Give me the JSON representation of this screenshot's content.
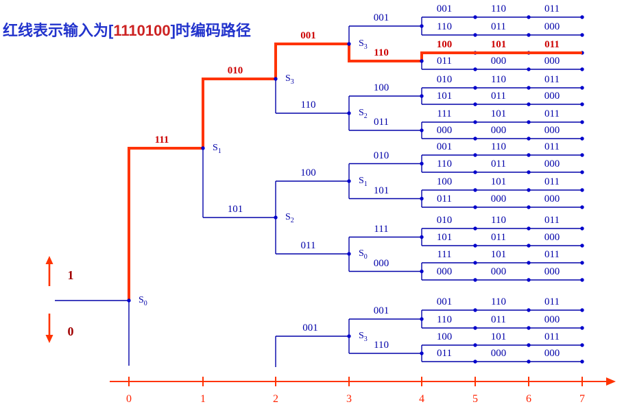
{
  "title": {
    "text_before": "红线表示输入为",
    "bracket_left": "[",
    "input_bits": "1110100",
    "bracket_right": "]",
    "text_after": "时编码路径"
  },
  "legend": {
    "one": "1",
    "zero": "0"
  },
  "axis": {
    "ticks": [
      "0",
      "1",
      "2",
      "3",
      "4",
      "5",
      "6",
      "7"
    ]
  },
  "states": [
    {
      "base": "S",
      "sub": "0"
    },
    {
      "base": "S",
      "sub": "1"
    },
    {
      "base": "S",
      "sub": "3"
    },
    {
      "base": "S",
      "sub": "2"
    },
    {
      "base": "S",
      "sub": "3"
    },
    {
      "base": "S",
      "sub": "2"
    },
    {
      "base": "S",
      "sub": "1"
    },
    {
      "base": "S",
      "sub": "0"
    },
    {
      "base": "S",
      "sub": "3"
    }
  ],
  "branches": [
    {
      "label": "111",
      "red": true
    },
    {
      "label": "010",
      "red": true
    },
    {
      "label": "101",
      "red": false
    },
    {
      "label": "001",
      "red": true
    },
    {
      "label": "110",
      "red": false
    },
    {
      "label": "100",
      "red": false
    },
    {
      "label": "011",
      "red": false
    },
    {
      "label": "001",
      "red": false
    },
    {
      "label": "110",
      "red": true
    },
    {
      "label": "100",
      "red": false
    },
    {
      "label": "011",
      "red": false
    },
    {
      "label": "010",
      "red": false
    },
    {
      "label": "101",
      "red": false
    },
    {
      "label": "111",
      "red": false
    },
    {
      "label": "000",
      "red": false
    },
    {
      "label": "001",
      "red": false
    },
    {
      "label": "110",
      "red": false
    },
    {
      "label": "001",
      "red": false
    }
  ],
  "tail_rows": [
    {
      "labels": [
        "001",
        "110",
        "011"
      ],
      "red": false
    },
    {
      "labels": [
        "110",
        "011",
        "000"
      ],
      "red": false
    },
    {
      "labels": [
        "100",
        "101",
        "011"
      ],
      "red": true
    },
    {
      "labels": [
        "011",
        "000",
        "000"
      ],
      "red": false
    },
    {
      "labels": [
        "010",
        "110",
        "011"
      ],
      "red": false
    },
    {
      "labels": [
        "101",
        "011",
        "000"
      ],
      "red": false
    },
    {
      "labels": [
        "111",
        "101",
        "011"
      ],
      "red": false
    },
    {
      "labels": [
        "000",
        "000",
        "000"
      ],
      "red": false
    },
    {
      "labels": [
        "001",
        "110",
        "011"
      ],
      "red": false
    },
    {
      "labels": [
        "110",
        "011",
        "000"
      ],
      "red": false
    },
    {
      "labels": [
        "100",
        "101",
        "011"
      ],
      "red": false
    },
    {
      "labels": [
        "011",
        "000",
        "000"
      ],
      "red": false
    },
    {
      "labels": [
        "010",
        "110",
        "011"
      ],
      "red": false
    },
    {
      "labels": [
        "101",
        "011",
        "000"
      ],
      "red": false
    },
    {
      "labels": [
        "111",
        "101",
        "011"
      ],
      "red": false
    },
    {
      "labels": [
        "000",
        "000",
        "000"
      ],
      "red": false
    },
    {
      "labels": [
        "001",
        "110",
        "011"
      ],
      "red": false
    },
    {
      "labels": [
        "110",
        "011",
        "000"
      ],
      "red": false
    },
    {
      "labels": [
        "100",
        "101",
        "011"
      ],
      "red": false
    },
    {
      "labels": [
        "011",
        "000",
        "000"
      ],
      "red": false
    }
  ],
  "colors": {
    "blue_line": "#0000A8",
    "blue_label": "#0000A8",
    "dot": "#0000CC",
    "red_path": "#FF3300",
    "red_label": "#CC0000",
    "axis": "#FF3300",
    "tick_label": "#FF2200",
    "legend_label": "#A00000",
    "title_blue": "#2233CC",
    "title_red": "#CC2222"
  }
}
